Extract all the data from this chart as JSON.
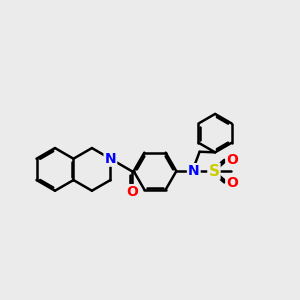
{
  "bg_color": "#ebebeb",
  "bond_color": "#000000",
  "bond_width": 1.8,
  "atom_colors": {
    "N": "#0000ff",
    "O": "#ff0000",
    "S": "#cccc00",
    "C": "#000000"
  },
  "font_size": 10,
  "dbo": 0.048
}
